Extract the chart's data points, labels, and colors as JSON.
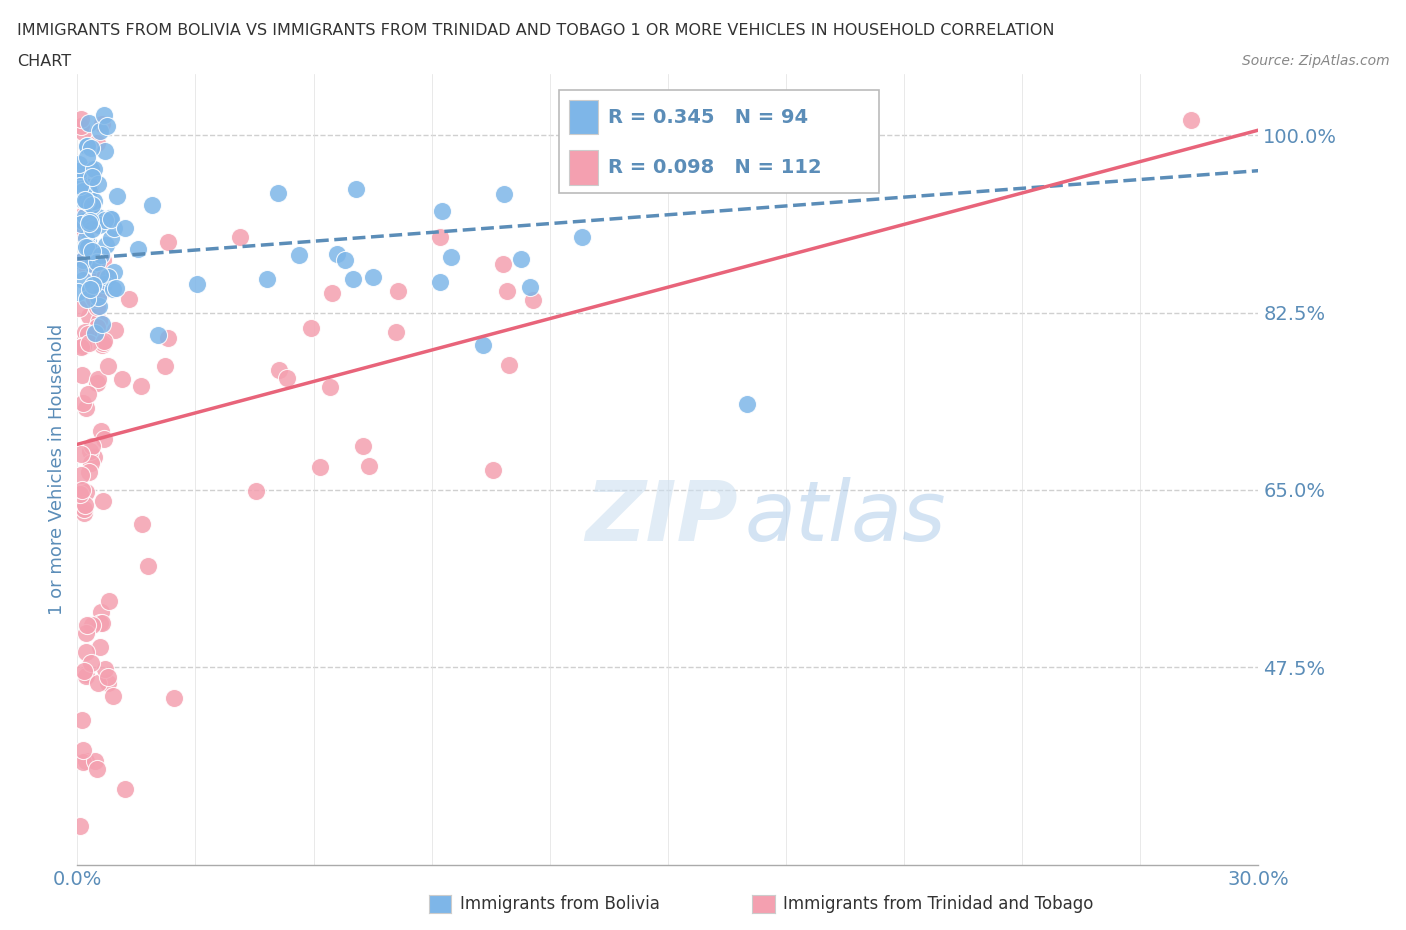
{
  "title_line1": "IMMIGRANTS FROM BOLIVIA VS IMMIGRANTS FROM TRINIDAD AND TOBAGO 1 OR MORE VEHICLES IN HOUSEHOLD CORRELATION",
  "title_line2": "CHART",
  "source": "Source: ZipAtlas.com",
  "ylabel": "1 or more Vehicles in Household",
  "xlim": [
    0.0,
    0.3
  ],
  "ylim": [
    0.28,
    1.06
  ],
  "yticks": [
    0.475,
    0.65,
    0.825,
    1.0
  ],
  "ytick_labels": [
    "47.5%",
    "65.0%",
    "82.5%",
    "100.0%"
  ],
  "xticks": [
    0.0,
    0.03,
    0.06,
    0.09,
    0.12,
    0.15,
    0.18,
    0.21,
    0.24,
    0.27,
    0.3
  ],
  "xtick_labels": [
    "0.0%",
    "",
    "",
    "",
    "",
    "",
    "",
    "",
    "",
    "",
    "30.0%"
  ],
  "bolivia_color": "#7EB6E8",
  "trinidad_color": "#F4A0B0",
  "bolivia_R": 0.345,
  "bolivia_N": 94,
  "trinidad_R": 0.098,
  "trinidad_N": 112,
  "legend_bolivia_label": "Immigrants from Bolivia",
  "legend_trinidad_label": "Immigrants from Trinidad and Tobago",
  "watermark_zip": "ZIP",
  "watermark_atlas": "atlas",
  "background_color": "#ffffff",
  "grid_color": "#d0d0d0",
  "axis_label_color": "#5B8DB8",
  "title_color": "#333333",
  "bolivia_line_color": "#5B8DB8",
  "trinidad_line_color": "#E8647A"
}
